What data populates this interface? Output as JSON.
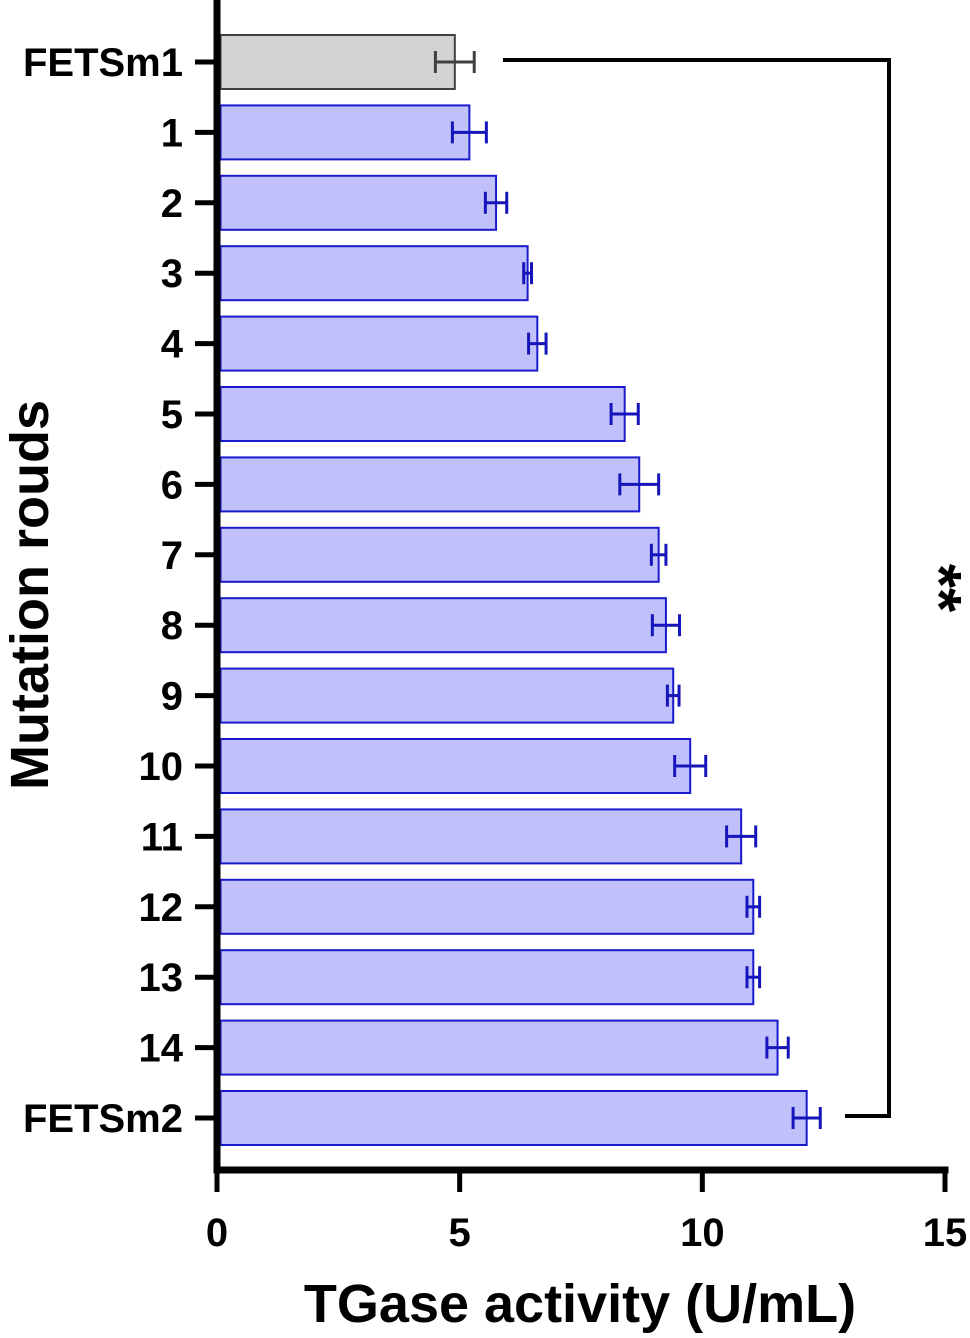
{
  "chart_data": {
    "type": "bar",
    "orientation": "horizontal",
    "xlabel": "TGase activity (U/mL)",
    "ylabel": "Mutation rouds",
    "xlim": [
      0,
      15
    ],
    "xticks": [
      "0",
      "5",
      "10",
      "15"
    ],
    "categories": [
      "FETSm1",
      "1",
      "2",
      "3",
      "4",
      "5",
      "6",
      "7",
      "8",
      "9",
      "10",
      "11",
      "12",
      "13",
      "14",
      "FETSm2"
    ],
    "values": [
      4.9,
      5.2,
      5.75,
      6.4,
      6.6,
      8.4,
      8.7,
      9.1,
      9.25,
      9.4,
      9.75,
      10.8,
      11.05,
      11.05,
      11.55,
      12.15
    ],
    "errors": [
      0.4,
      0.35,
      0.22,
      0.08,
      0.18,
      0.28,
      0.4,
      0.15,
      0.28,
      0.12,
      0.32,
      0.3,
      0.13,
      0.13,
      0.22,
      0.28
    ],
    "significance": {
      "from": "FETSm1",
      "to": "FETSm2",
      "label": "**"
    },
    "colors": {
      "control_fill": "#d3d3d3",
      "control_stroke": "#404040",
      "bar_fill": "#c0c0fa",
      "bar_stroke": "#1a1acc",
      "error_bar": "#1515bb",
      "axis": "#000000"
    },
    "grid": false,
    "legend": "none"
  }
}
